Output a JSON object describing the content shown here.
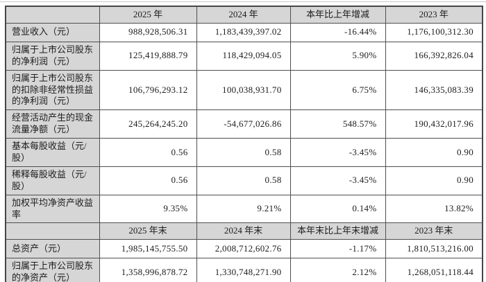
{
  "table": {
    "colors": {
      "header_bg": "#d6d6d6",
      "cell_bg": "#ffffff",
      "border": "#4e4e4e",
      "text": "#1c1c1c"
    },
    "sections": [
      {
        "columns": [
          "",
          "2025 年",
          "2024 年",
          "本年比上年增减",
          "2023 年"
        ],
        "rows": [
          {
            "label": "营业收入（元）",
            "values": [
              "988,928,506.31",
              "1,183,439,397.02",
              "-16.44%",
              "1,176,100,312.30"
            ]
          },
          {
            "label": "归属于上市公司股东的净利润（元）",
            "values": [
              "125,419,888.79",
              "118,429,094.05",
              "5.90%",
              "166,392,826.04"
            ]
          },
          {
            "label": "归属于上市公司股东的扣除非经常性损益的净利润（元）",
            "values": [
              "106,796,293.12",
              "100,038,931.70",
              "6.75%",
              "146,335,083.39"
            ]
          },
          {
            "label": "经营活动产生的现金流量净额（元）",
            "values": [
              "245,264,245.20",
              "-54,677,026.86",
              "548.57%",
              "190,432,017.96"
            ]
          },
          {
            "label": "基本每股收益（元/股）",
            "values": [
              "0.56",
              "0.58",
              "-3.45%",
              "0.90"
            ]
          },
          {
            "label": "稀释每股收益（元/股）",
            "values": [
              "0.56",
              "0.58",
              "-3.45%",
              "0.90"
            ]
          },
          {
            "label": "加权平均净资产收益率",
            "values": [
              "9.35%",
              "9.21%",
              "0.14%",
              "13.82%"
            ]
          }
        ]
      },
      {
        "columns": [
          "",
          "2025 年末",
          "2024 年末",
          "本年末比上年末增减",
          "2023 年末"
        ],
        "rows": [
          {
            "label": "总资产（元）",
            "values": [
              "1,985,145,755.50",
              "2,008,712,602.76",
              "-1.17%",
              "1,810,513,216.00"
            ]
          },
          {
            "label": "归属于上市公司股东的净资产（元）",
            "values": [
              "1,358,996,878.72",
              "1,330,748,271.90",
              "2.12%",
              "1,268,051,118.44"
            ]
          }
        ]
      }
    ]
  }
}
